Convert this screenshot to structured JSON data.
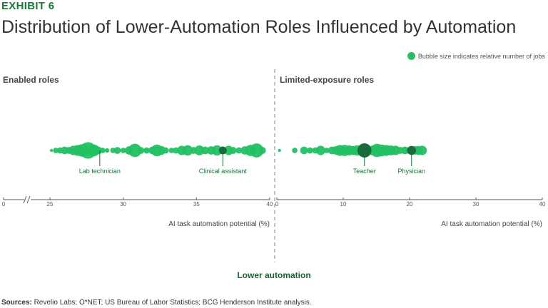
{
  "header": {
    "exhibit": "EXHIBIT 6",
    "title": "Distribution of Lower-Automation Roles Influenced by Automation"
  },
  "legend": {
    "text": "Bubble size indicates relative number of jobs"
  },
  "footer": {
    "group_label": "Lower automation",
    "sources_label": "Sources:",
    "sources_text": " Revelio Labs; O*NET; US Bureau of Labor Statistics; BCG Henderson Institute analysis."
  },
  "colors": {
    "bubble": "#22c063",
    "highlight": "#1a6b3c",
    "axis": "#555555",
    "divider": "#888888"
  },
  "chart_data": [
    {
      "type": "scatter",
      "title": "Enabled roles",
      "xlabel": "AI task automation potential (%)",
      "axis_break": true,
      "xticks": [
        0,
        25,
        30,
        35,
        40
      ],
      "xlim": [
        25,
        40
      ],
      "points": [
        {
          "x": 25.1,
          "size": 1
        },
        {
          "x": 25.4,
          "size": 3
        },
        {
          "x": 25.7,
          "size": 4
        },
        {
          "x": 26.0,
          "size": 6
        },
        {
          "x": 26.3,
          "size": 5
        },
        {
          "x": 26.6,
          "size": 9
        },
        {
          "x": 26.9,
          "size": 12
        },
        {
          "x": 27.2,
          "size": 16
        },
        {
          "x": 27.6,
          "size": 28
        },
        {
          "x": 28.0,
          "size": 14
        },
        {
          "x": 28.3,
          "size": 6
        },
        {
          "x": 28.6,
          "size": 3
        },
        {
          "x": 28.9,
          "size": 2
        },
        {
          "x": 29.3,
          "size": 3
        },
        {
          "x": 29.6,
          "size": 5
        },
        {
          "x": 30.0,
          "size": 3
        },
        {
          "x": 30.4,
          "size": 7
        },
        {
          "x": 30.8,
          "size": 18
        },
        {
          "x": 31.2,
          "size": 5
        },
        {
          "x": 31.6,
          "size": 4
        },
        {
          "x": 32.0,
          "size": 6
        },
        {
          "x": 32.3,
          "size": 14
        },
        {
          "x": 32.6,
          "size": 8
        },
        {
          "x": 32.9,
          "size": 4
        },
        {
          "x": 33.3,
          "size": 3
        },
        {
          "x": 33.6,
          "size": 4
        },
        {
          "x": 34.0,
          "size": 9
        },
        {
          "x": 34.4,
          "size": 11
        },
        {
          "x": 34.8,
          "size": 5
        },
        {
          "x": 35.2,
          "size": 10
        },
        {
          "x": 35.6,
          "size": 6
        },
        {
          "x": 36.0,
          "size": 7
        },
        {
          "x": 36.4,
          "size": 11
        },
        {
          "x": 36.8,
          "size": 6
        },
        {
          "x": 37.2,
          "size": 9
        },
        {
          "x": 37.5,
          "size": 5
        },
        {
          "x": 37.9,
          "size": 4
        },
        {
          "x": 38.3,
          "size": 7
        },
        {
          "x": 38.7,
          "size": 13
        },
        {
          "x": 39.1,
          "size": 20
        },
        {
          "x": 39.5,
          "size": 5
        }
      ],
      "annotations": [
        {
          "label": "Lab technician",
          "x": 28.4
        },
        {
          "label": "Clinical assistant",
          "x": 36.8
        }
      ]
    },
    {
      "type": "scatter",
      "title": "Limited-exposure roles",
      "xlabel": "AI task automation potential (%)",
      "xticks": [
        0,
        10,
        20,
        30,
        40
      ],
      "xlim": [
        0,
        40
      ],
      "points": [
        {
          "x": 0.4,
          "size": 1
        },
        {
          "x": 2.7,
          "size": 3
        },
        {
          "x": 4.1,
          "size": 6
        },
        {
          "x": 5.0,
          "size": 4
        },
        {
          "x": 5.8,
          "size": 4
        },
        {
          "x": 6.6,
          "size": 9
        },
        {
          "x": 7.5,
          "size": 3
        },
        {
          "x": 8.3,
          "size": 6
        },
        {
          "x": 8.9,
          "size": 7
        },
        {
          "x": 9.5,
          "size": 12
        },
        {
          "x": 10.2,
          "size": 13
        },
        {
          "x": 10.9,
          "size": 10
        },
        {
          "x": 11.5,
          "size": 8
        },
        {
          "x": 12.1,
          "size": 11
        },
        {
          "x": 12.7,
          "size": 9
        },
        {
          "x": 13.2,
          "size": 20
        },
        {
          "x": 13.8,
          "size": 7
        },
        {
          "x": 14.5,
          "size": 10
        },
        {
          "x": 15.1,
          "size": 18
        },
        {
          "x": 15.8,
          "size": 14
        },
        {
          "x": 16.5,
          "size": 12
        },
        {
          "x": 17.2,
          "size": 10
        },
        {
          "x": 17.9,
          "size": 9
        },
        {
          "x": 18.6,
          "size": 5
        },
        {
          "x": 19.3,
          "size": 6
        },
        {
          "x": 19.8,
          "size": 4
        },
        {
          "x": 20.3,
          "size": 8
        },
        {
          "x": 20.8,
          "size": 7
        },
        {
          "x": 21.3,
          "size": 8
        },
        {
          "x": 21.9,
          "size": 9
        }
      ],
      "annotations": [
        {
          "label": "Teacher",
          "x": 13.2
        },
        {
          "label": "Physician",
          "x": 20.3
        }
      ]
    }
  ]
}
